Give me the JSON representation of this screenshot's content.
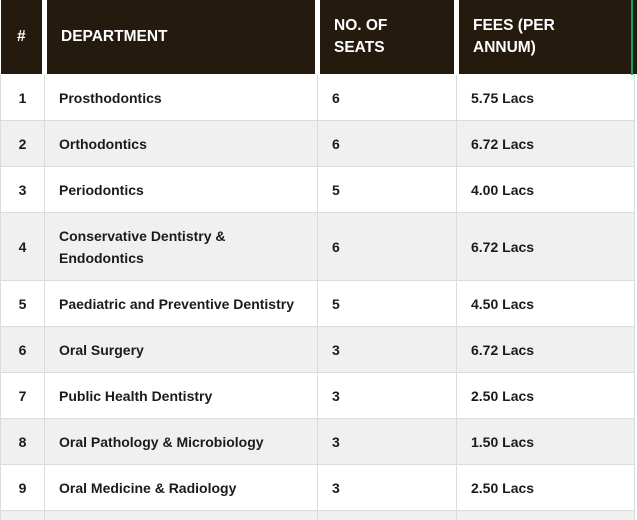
{
  "table": {
    "columns": [
      {
        "key": "num",
        "label": "#"
      },
      {
        "key": "department",
        "label": "DEPARTMENT"
      },
      {
        "key": "seats",
        "label": "NO. OF SEATS"
      },
      {
        "key": "fees",
        "label": "FEES (PER ANNUM)"
      }
    ],
    "rows": [
      {
        "num": "1",
        "department": "Prosthodontics",
        "seats": "6",
        "fees": "5.75 Lacs"
      },
      {
        "num": "2",
        "department": "Orthodontics",
        "seats": "6",
        "fees": "6.72 Lacs"
      },
      {
        "num": "3",
        "department": "Periodontics",
        "seats": "5",
        "fees": "4.00 Lacs"
      },
      {
        "num": "4",
        "department": "Conservative Dentistry & Endodontics",
        "seats": "6",
        "fees": "6.72 Lacs"
      },
      {
        "num": "5",
        "department": "Paediatric and Preventive Dentistry",
        "seats": "5",
        "fees": "4.50 Lacs"
      },
      {
        "num": "6",
        "department": "Oral Surgery",
        "seats": "3",
        "fees": "6.72 Lacs"
      },
      {
        "num": "7",
        "department": "Public Health Dentistry",
        "seats": "3",
        "fees": "2.50 Lacs"
      },
      {
        "num": "8",
        "department": "Oral Pathology & Microbiology",
        "seats": "3",
        "fees": "1.50 Lacs"
      },
      {
        "num": "9",
        "department": "Oral Medicine & Radiology",
        "seats": "3",
        "fees": "2.50 Lacs"
      }
    ]
  },
  "colors": {
    "header_bg": "#241a0d",
    "header_text": "#ffffff",
    "alt_row_bg": "#f0f0f0",
    "row_bg": "#ffffff",
    "border": "#dcdcdc",
    "accent_green": "#17a05f",
    "body_text": "#1b1b1b"
  }
}
